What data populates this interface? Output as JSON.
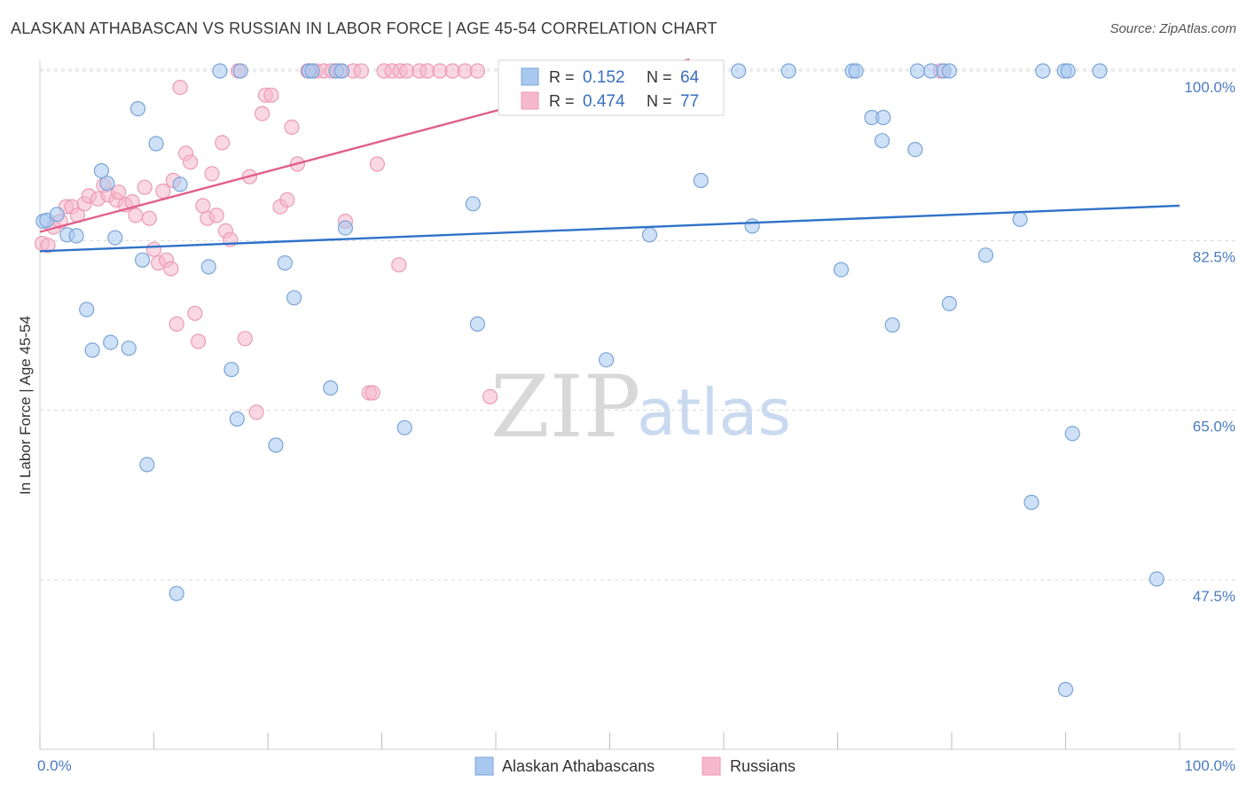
{
  "header": {
    "title": "ALASKAN ATHABASCAN VS RUSSIAN IN LABOR FORCE | AGE 45-54 CORRELATION CHART",
    "source": "Source: ZipAtlas.com"
  },
  "watermark": {
    "zip": "ZIP",
    "atlas": "atlas"
  },
  "legend": {
    "r_label": "R =",
    "n_label": "N =",
    "rows": [
      {
        "r": "0.152",
        "n": "64"
      },
      {
        "r": "0.474",
        "n": "77"
      }
    ]
  },
  "bottom_legend": {
    "items": [
      "Alaskan Athabascans",
      "Russians"
    ]
  },
  "colors": {
    "blue_fill": "#a8c8f0",
    "blue_stroke": "#7aa4d8",
    "blue_line": "#2f72c9",
    "pink_fill": "#f6b8cc",
    "pink_stroke": "#ec9ab4",
    "pink_line": "#e0608a",
    "grid": "#d8d8d8",
    "tick_text": "#4a7cc0"
  },
  "chart_data": {
    "type": "scatter",
    "title": "ALASKAN ATHABASCAN VS RUSSIAN IN LABOR FORCE | AGE 45-54 CORRELATION CHART",
    "xlabel": "",
    "ylabel": "In Labor Force | Age 45-54",
    "xlim": [
      0,
      100
    ],
    "ylim": [
      31,
      102
    ],
    "x_tick_labels": [
      "0.0%",
      "100.0%"
    ],
    "y_ticks": [
      100.0,
      82.5,
      65.0,
      47.5
    ],
    "y_tick_labels": [
      "100.0%",
      "82.5%",
      "65.0%",
      "47.5%"
    ],
    "grid": true,
    "legend_position": "top-center",
    "series": [
      {
        "name": "Alaskan Athabascans",
        "r": 0.152,
        "n": 64,
        "trend": {
          "x": [
            0,
            100
          ],
          "y": [
            81.4,
            86.1
          ]
        },
        "points": [
          [
            0.3,
            84.5
          ],
          [
            0.6,
            84.6
          ],
          [
            1.5,
            85.2
          ],
          [
            2.4,
            83.1
          ],
          [
            3.2,
            83.0
          ],
          [
            4.1,
            75.4
          ],
          [
            4.6,
            71.2
          ],
          [
            5.4,
            89.7
          ],
          [
            5.9,
            88.4
          ],
          [
            6.2,
            72.0
          ],
          [
            6.6,
            82.8
          ],
          [
            7.8,
            71.4
          ],
          [
            8.6,
            96.1
          ],
          [
            9.0,
            80.5
          ],
          [
            9.4,
            59.4
          ],
          [
            10.2,
            92.5
          ],
          [
            12.0,
            46.1
          ],
          [
            12.3,
            88.3
          ],
          [
            14.8,
            79.8
          ],
          [
            15.8,
            100.0
          ],
          [
            16.8,
            69.2
          ],
          [
            17.3,
            64.1
          ],
          [
            17.6,
            100.0
          ],
          [
            20.7,
            61.4
          ],
          [
            21.5,
            80.2
          ],
          [
            22.3,
            76.6
          ],
          [
            23.6,
            100.0
          ],
          [
            23.9,
            100.0
          ],
          [
            25.5,
            67.3
          ],
          [
            26.0,
            100.0
          ],
          [
            26.5,
            100.0
          ],
          [
            26.8,
            83.8
          ],
          [
            32.0,
            63.2
          ],
          [
            38.0,
            86.3
          ],
          [
            38.4,
            73.9
          ],
          [
            49.7,
            70.2
          ],
          [
            53.5,
            83.1
          ],
          [
            58.0,
            88.7
          ],
          [
            61.3,
            100.0
          ],
          [
            62.5,
            84.0
          ],
          [
            65.7,
            100.0
          ],
          [
            70.3,
            79.5
          ],
          [
            71.3,
            100.0
          ],
          [
            71.6,
            100.0
          ],
          [
            73.0,
            95.2
          ],
          [
            74.0,
            95.2
          ],
          [
            73.9,
            92.8
          ],
          [
            74.8,
            73.8
          ],
          [
            76.8,
            91.9
          ],
          [
            77.0,
            100.0
          ],
          [
            78.2,
            100.0
          ],
          [
            79.3,
            100.0
          ],
          [
            79.8,
            100.0
          ],
          [
            79.8,
            76.0
          ],
          [
            83.0,
            81.0
          ],
          [
            86.0,
            84.7
          ],
          [
            87.0,
            55.5
          ],
          [
            88.0,
            100.0
          ],
          [
            89.9,
            100.0
          ],
          [
            90.2,
            100.0
          ],
          [
            90.6,
            62.6
          ],
          [
            93.0,
            100.0
          ],
          [
            98.0,
            47.6
          ],
          [
            90.0,
            36.2
          ]
        ]
      },
      {
        "name": "Russians",
        "r": 0.474,
        "n": 77,
        "trend": {
          "x": [
            0,
            57
          ],
          "y": [
            83.4,
            101.2
          ]
        },
        "points": [
          [
            0.2,
            82.2
          ],
          [
            0.7,
            82.0
          ],
          [
            1.2,
            83.9
          ],
          [
            1.8,
            84.5
          ],
          [
            2.3,
            86.0
          ],
          [
            2.8,
            86.0
          ],
          [
            3.3,
            85.1
          ],
          [
            3.9,
            86.3
          ],
          [
            4.3,
            87.1
          ],
          [
            5.1,
            86.8
          ],
          [
            5.6,
            88.2
          ],
          [
            6.0,
            87.2
          ],
          [
            6.7,
            86.7
          ],
          [
            6.9,
            87.5
          ],
          [
            7.5,
            86.2
          ],
          [
            8.1,
            86.5
          ],
          [
            8.4,
            85.1
          ],
          [
            9.2,
            88.0
          ],
          [
            9.6,
            84.8
          ],
          [
            10.0,
            81.6
          ],
          [
            10.4,
            80.2
          ],
          [
            10.8,
            87.6
          ],
          [
            11.1,
            80.5
          ],
          [
            11.5,
            79.6
          ],
          [
            11.7,
            88.7
          ],
          [
            12.0,
            73.9
          ],
          [
            12.3,
            98.3
          ],
          [
            12.8,
            91.5
          ],
          [
            13.2,
            90.6
          ],
          [
            13.6,
            75.0
          ],
          [
            13.9,
            72.1
          ],
          [
            14.3,
            86.1
          ],
          [
            14.7,
            84.8
          ],
          [
            15.1,
            89.4
          ],
          [
            15.5,
            85.1
          ],
          [
            16.0,
            92.6
          ],
          [
            16.3,
            83.5
          ],
          [
            16.7,
            82.6
          ],
          [
            17.4,
            100.0
          ],
          [
            18.0,
            72.4
          ],
          [
            18.4,
            89.1
          ],
          [
            19.0,
            64.8
          ],
          [
            19.5,
            95.6
          ],
          [
            19.8,
            97.5
          ],
          [
            20.3,
            97.5
          ],
          [
            21.1,
            86.0
          ],
          [
            21.7,
            86.7
          ],
          [
            22.1,
            94.2
          ],
          [
            22.6,
            90.4
          ],
          [
            23.5,
            100.0
          ],
          [
            24.2,
            100.0
          ],
          [
            24.9,
            100.0
          ],
          [
            25.6,
            100.0
          ],
          [
            26.3,
            100.0
          ],
          [
            26.8,
            84.5
          ],
          [
            27.5,
            100.0
          ],
          [
            28.2,
            100.0
          ],
          [
            28.9,
            66.8
          ],
          [
            29.2,
            66.8
          ],
          [
            29.6,
            90.4
          ],
          [
            30.2,
            100.0
          ],
          [
            30.9,
            100.0
          ],
          [
            31.6,
            100.0
          ],
          [
            32.2,
            100.0
          ],
          [
            31.5,
            80.0
          ],
          [
            33.3,
            100.0
          ],
          [
            34.0,
            100.0
          ],
          [
            35.1,
            100.0
          ],
          [
            36.2,
            100.0
          ],
          [
            37.3,
            100.0
          ],
          [
            38.4,
            100.0
          ],
          [
            39.5,
            66.4
          ],
          [
            42.0,
            100.0
          ],
          [
            45.0,
            100.0
          ],
          [
            51.0,
            100.0
          ],
          [
            53.0,
            100.0
          ],
          [
            79.0,
            100.0
          ]
        ]
      }
    ]
  }
}
